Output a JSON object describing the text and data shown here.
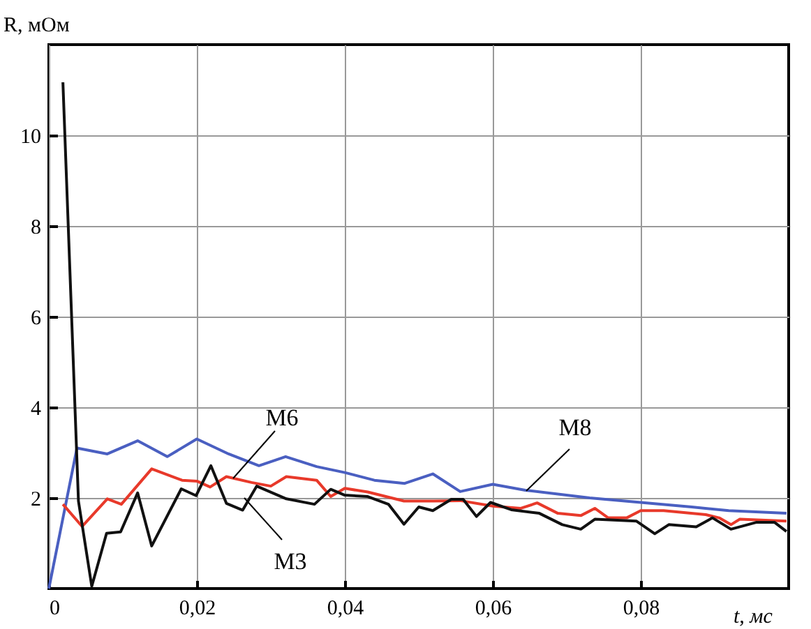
{
  "chart_data": {
    "type": "line",
    "ylabel": "R, мОм",
    "xlabel": "t, мс",
    "xlim": [
      0,
      0.1
    ],
    "ylim": [
      0,
      12
    ],
    "xticks": [
      {
        "value": 0,
        "label": "0"
      },
      {
        "value": 0.02,
        "label": "0,02"
      },
      {
        "value": 0.04,
        "label": "0,04"
      },
      {
        "value": 0.06,
        "label": "0,06"
      },
      {
        "value": 0.08,
        "label": "0,08"
      }
    ],
    "yticks": [
      2,
      4,
      6,
      8,
      10
    ],
    "grid": true,
    "legend": false,
    "marker": "none",
    "line_style": "solid",
    "series": [
      {
        "name": "M8",
        "color": "#4a5fc1",
        "x": [
          0,
          0.0038,
          0.0079,
          0.012,
          0.016,
          0.02,
          0.0243,
          0.0284,
          0.032,
          0.0362,
          0.04,
          0.044,
          0.0481,
          0.0519,
          0.0556,
          0.06,
          0.0644,
          0.0731,
          0.08,
          0.0869,
          0.0919,
          0.0997
        ],
        "values": [
          0,
          3.1,
          2.97,
          3.26,
          2.91,
          3.3,
          2.97,
          2.71,
          2.91,
          2.69,
          2.56,
          2.39,
          2.32,
          2.53,
          2.14,
          2.3,
          2.17,
          2.0,
          1.9,
          1.8,
          1.72,
          1.66
        ]
      },
      {
        "name": "M6",
        "color": "#e8392a",
        "x": [
          0.0019,
          0.0045,
          0.0079,
          0.0098,
          0.0139,
          0.018,
          0.02,
          0.0218,
          0.024,
          0.0274,
          0.03,
          0.0321,
          0.0362,
          0.0381,
          0.04,
          0.0431,
          0.048,
          0.052,
          0.0556,
          0.06,
          0.0638,
          0.066,
          0.0688,
          0.0719,
          0.0738,
          0.0756,
          0.0781,
          0.08,
          0.0831,
          0.0888,
          0.0906,
          0.0922,
          0.0934,
          0.0997
        ],
        "values": [
          1.86,
          1.37,
          1.98,
          1.86,
          2.64,
          2.39,
          2.37,
          2.24,
          2.47,
          2.34,
          2.26,
          2.47,
          2.39,
          2.03,
          2.21,
          2.13,
          1.93,
          1.93,
          1.94,
          1.82,
          1.77,
          1.89,
          1.66,
          1.61,
          1.77,
          1.56,
          1.56,
          1.72,
          1.72,
          1.63,
          1.56,
          1.41,
          1.53,
          1.49
        ]
      },
      {
        "name": "M3",
        "color": "#111111",
        "x": [
          0.0019,
          0.004,
          0.0058,
          0.0078,
          0.0097,
          0.012,
          0.0139,
          0.0179,
          0.0199,
          0.0219,
          0.024,
          0.0262,
          0.0281,
          0.0321,
          0.0359,
          0.0381,
          0.04,
          0.0431,
          0.0459,
          0.048,
          0.05,
          0.0519,
          0.0544,
          0.056,
          0.0578,
          0.0597,
          0.0625,
          0.0663,
          0.0694,
          0.0719,
          0.0738,
          0.0794,
          0.0819,
          0.0838,
          0.0875,
          0.0897,
          0.0922,
          0.0956,
          0.0981,
          0.0997
        ],
        "values": [
          11.17,
          1.93,
          0.05,
          1.22,
          1.25,
          2.11,
          0.94,
          2.2,
          2.05,
          2.71,
          1.88,
          1.73,
          2.26,
          1.98,
          1.86,
          2.19,
          2.06,
          2.03,
          1.86,
          1.42,
          1.8,
          1.72,
          1.97,
          1.97,
          1.59,
          1.9,
          1.74,
          1.66,
          1.41,
          1.31,
          1.53,
          1.49,
          1.21,
          1.41,
          1.36,
          1.56,
          1.31,
          1.46,
          1.46,
          1.26
        ]
      }
    ]
  }
}
